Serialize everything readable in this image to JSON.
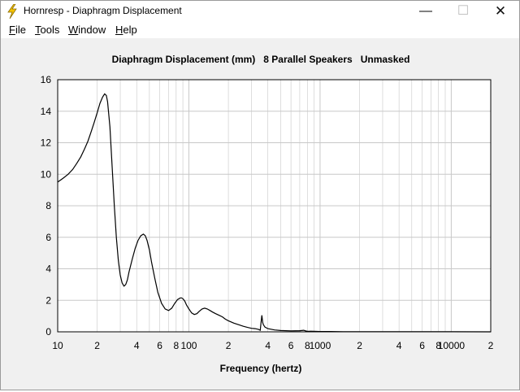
{
  "window": {
    "title": "Hornresp - Diaphragm Displacement",
    "controls": {
      "minimize": "—",
      "maximize": "☐",
      "close": "✕"
    }
  },
  "menu": {
    "items": [
      {
        "first": "F",
        "rest": "ile"
      },
      {
        "first": "T",
        "rest": "ools"
      },
      {
        "first": "W",
        "rest": "indow"
      },
      {
        "first": "H",
        "rest": "elp"
      }
    ]
  },
  "colors": {
    "curve": "#000000",
    "grid": "#c8c8c8",
    "plot_bg": "#ffffff",
    "icon": "#f5c400"
  },
  "chart_data": {
    "type": "line",
    "title": "Diaphragm Displacement (mm)   8 Parallel Speakers   Unmasked",
    "xlabel": "Frequency (hertz)",
    "ylabel": "",
    "x_scale": "log",
    "xlim": [
      10,
      20000
    ],
    "ylim": [
      0,
      16
    ],
    "grid": true,
    "y_ticks": [
      "0",
      "2",
      "4",
      "6",
      "8",
      "10",
      "12",
      "14",
      "16"
    ],
    "x_ticks": [
      {
        "v": 10,
        "t": "10"
      },
      {
        "v": 20,
        "t": "2"
      },
      {
        "v": 40,
        "t": "4"
      },
      {
        "v": 60,
        "t": "6"
      },
      {
        "v": 80,
        "t": "8"
      },
      {
        "v": 100,
        "t": "100"
      },
      {
        "v": 200,
        "t": "2"
      },
      {
        "v": 400,
        "t": "4"
      },
      {
        "v": 600,
        "t": "6"
      },
      {
        "v": 800,
        "t": "8"
      },
      {
        "v": 1000,
        "t": "1000"
      },
      {
        "v": 2000,
        "t": "2"
      },
      {
        "v": 4000,
        "t": "4"
      },
      {
        "v": 6000,
        "t": "6"
      },
      {
        "v": 8000,
        "t": "8"
      },
      {
        "v": 10000,
        "t": "10000"
      },
      {
        "v": 20000,
        "t": "2"
      }
    ],
    "series": [
      {
        "x": [
          10,
          11,
          12,
          13,
          14,
          15,
          16,
          17,
          18,
          19,
          20,
          21,
          22,
          22.8,
          23.5,
          24,
          25,
          26,
          27,
          28,
          29,
          30,
          31,
          32,
          33,
          34,
          35,
          37,
          39,
          41,
          43,
          45,
          46.5,
          48,
          50,
          52,
          55,
          58,
          62,
          66,
          70,
          74,
          78,
          82,
          86,
          88,
          90,
          93,
          96,
          100,
          105,
          110,
          115,
          120,
          126,
          132,
          138,
          145,
          152,
          160,
          170,
          180,
          190,
          200,
          220,
          240,
          260,
          280,
          300,
          320,
          340,
          350,
          355,
          360,
          365,
          370,
          380,
          400,
          450,
          500,
          600,
          700,
          750,
          780,
          800,
          900,
          1000,
          1200,
          1500,
          2000,
          3000,
          5000,
          10000,
          20000
        ],
        "y": [
          9.5,
          9.75,
          10.0,
          10.3,
          10.7,
          11.1,
          11.6,
          12.1,
          12.7,
          13.3,
          13.9,
          14.5,
          14.9,
          15.1,
          15.0,
          14.6,
          13.0,
          10.5,
          8.0,
          6.0,
          4.5,
          3.6,
          3.1,
          2.9,
          3.0,
          3.3,
          3.8,
          4.6,
          5.3,
          5.8,
          6.1,
          6.2,
          6.1,
          5.8,
          5.2,
          4.4,
          3.4,
          2.5,
          1.8,
          1.45,
          1.35,
          1.5,
          1.8,
          2.05,
          2.15,
          2.15,
          2.1,
          1.95,
          1.7,
          1.45,
          1.2,
          1.1,
          1.15,
          1.3,
          1.45,
          1.5,
          1.45,
          1.35,
          1.25,
          1.15,
          1.05,
          0.95,
          0.8,
          0.7,
          0.55,
          0.45,
          0.35,
          0.28,
          0.22,
          0.2,
          0.15,
          0.1,
          0.6,
          1.05,
          0.6,
          0.45,
          0.3,
          0.2,
          0.12,
          0.08,
          0.06,
          0.07,
          0.1,
          0.05,
          0.04,
          0.03,
          0.02,
          0.02,
          0.01,
          0.01,
          0.01,
          0.01,
          0.005,
          0.0
        ]
      }
    ]
  }
}
